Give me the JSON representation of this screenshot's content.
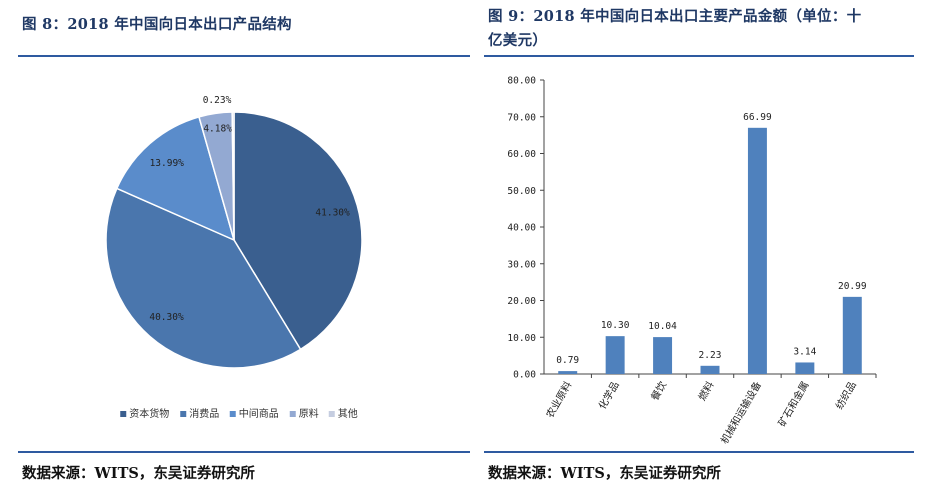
{
  "left": {
    "title": "图 8：2018 年中国向日本出口产品结构",
    "source": "数据来源：WITS，东吴证券研究所"
  },
  "right": {
    "title_line1": "图 9：2018 年中国向日本出口主要产品金额（单位：十",
    "title_line2": "亿美元）",
    "source": "数据来源：WITS，东吴证券研究所"
  },
  "colors": {
    "rule": "#2e5aa0",
    "bar": "#4f81bd",
    "pie": [
      "#3a5f8f",
      "#4a76ad",
      "#5a8ccb",
      "#93a9d2",
      "#c5cde0"
    ]
  },
  "chart_data": [
    {
      "type": "pie",
      "title": "",
      "slices": [
        {
          "label": "资本货物",
          "value": 41.3,
          "display": "41.30%"
        },
        {
          "label": "消费品",
          "value": 40.3,
          "display": "40.30%"
        },
        {
          "label": "中间商品",
          "value": 13.99,
          "display": "13.99%"
        },
        {
          "label": "原料",
          "value": 4.18,
          "display": "4.18%"
        },
        {
          "label": "其他",
          "value": 0.23,
          "display": "0.23%"
        }
      ],
      "legend_position": "bottom"
    },
    {
      "type": "bar",
      "title": "",
      "categories": [
        "农业原料",
        "化学品",
        "餐饮",
        "燃料",
        "机械和运输设备",
        "矿石和金属",
        "纺织品"
      ],
      "values": [
        0.79,
        10.3,
        10.04,
        2.23,
        66.99,
        3.14,
        20.99
      ],
      "value_labels": [
        "0.79",
        "10.30",
        "10.04",
        "2.23",
        "66.99",
        "3.14",
        "20.99"
      ],
      "ylim": [
        0,
        80
      ],
      "yticks": [
        "0.00",
        "10.00",
        "20.00",
        "30.00",
        "40.00",
        "50.00",
        "60.00",
        "70.00",
        "80.00"
      ],
      "xlabel": "",
      "ylabel": "",
      "grid": false
    }
  ]
}
